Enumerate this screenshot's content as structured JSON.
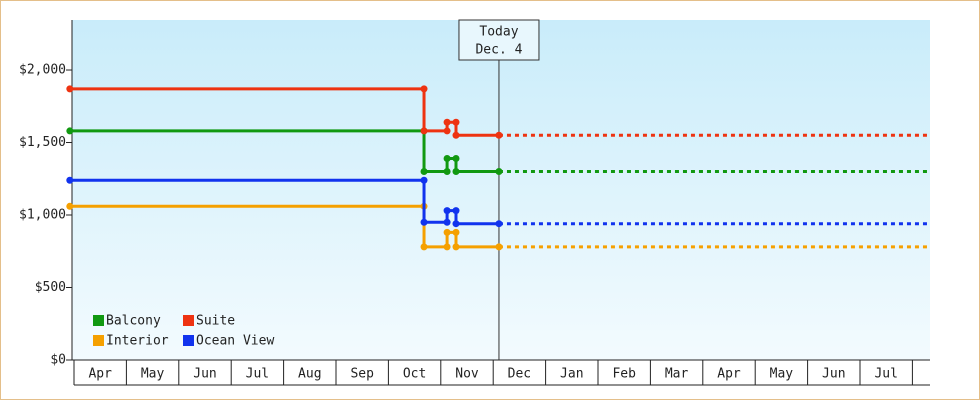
{
  "chart_data": {
    "type": "line",
    "categories": [
      "Apr",
      "May",
      "Jun",
      "Jul",
      "Aug",
      "Sep",
      "Oct",
      "Nov",
      "Dec",
      "Jan",
      "Feb",
      "Mar",
      "Apr",
      "May",
      "Jun",
      "Jul"
    ],
    "xlim": [
      -0.08,
      16.34
    ],
    "ylim": [
      0,
      2345
    ],
    "yticks": [
      {
        "value": 0,
        "label": "$0"
      },
      {
        "value": 500,
        "label": "$500"
      },
      {
        "value": 1000,
        "label": "$1,000"
      },
      {
        "value": 1500,
        "label": "$1,500"
      },
      {
        "value": 2000,
        "label": "$2,000"
      }
    ],
    "annotation": {
      "x": 8.11,
      "lines": [
        "Today",
        "Dec. 4"
      ]
    },
    "legend": "lower left",
    "series": [
      {
        "name": "Balcony",
        "color": "#119911",
        "x": [
          -0.08,
          6.68,
          6.68,
          7.12,
          7.12,
          7.29,
          7.29,
          8.11
        ],
        "values": [
          1580,
          1580,
          1300,
          1300,
          1390,
          1390,
          1300,
          1300
        ]
      },
      {
        "name": "Suite",
        "color": "#ee3311",
        "x": [
          -0.08,
          6.68,
          6.68,
          7.12,
          7.12,
          7.29,
          7.29,
          8.11
        ],
        "values": [
          1870,
          1870,
          1580,
          1580,
          1640,
          1640,
          1550,
          1550
        ]
      },
      {
        "name": "Interior",
        "color": "#f5a000",
        "x": [
          -0.08,
          6.68,
          6.68,
          7.12,
          7.12,
          7.29,
          7.29,
          8.11
        ],
        "values": [
          1060,
          1060,
          780,
          780,
          880,
          880,
          780,
          780
        ]
      },
      {
        "name": "Ocean View",
        "color": "#1133ee",
        "x": [
          -0.08,
          6.68,
          6.68,
          7.12,
          7.12,
          7.29,
          7.29,
          8.11
        ],
        "values": [
          1240,
          1240,
          950,
          950,
          1030,
          1030,
          940,
          940
        ]
      }
    ]
  }
}
